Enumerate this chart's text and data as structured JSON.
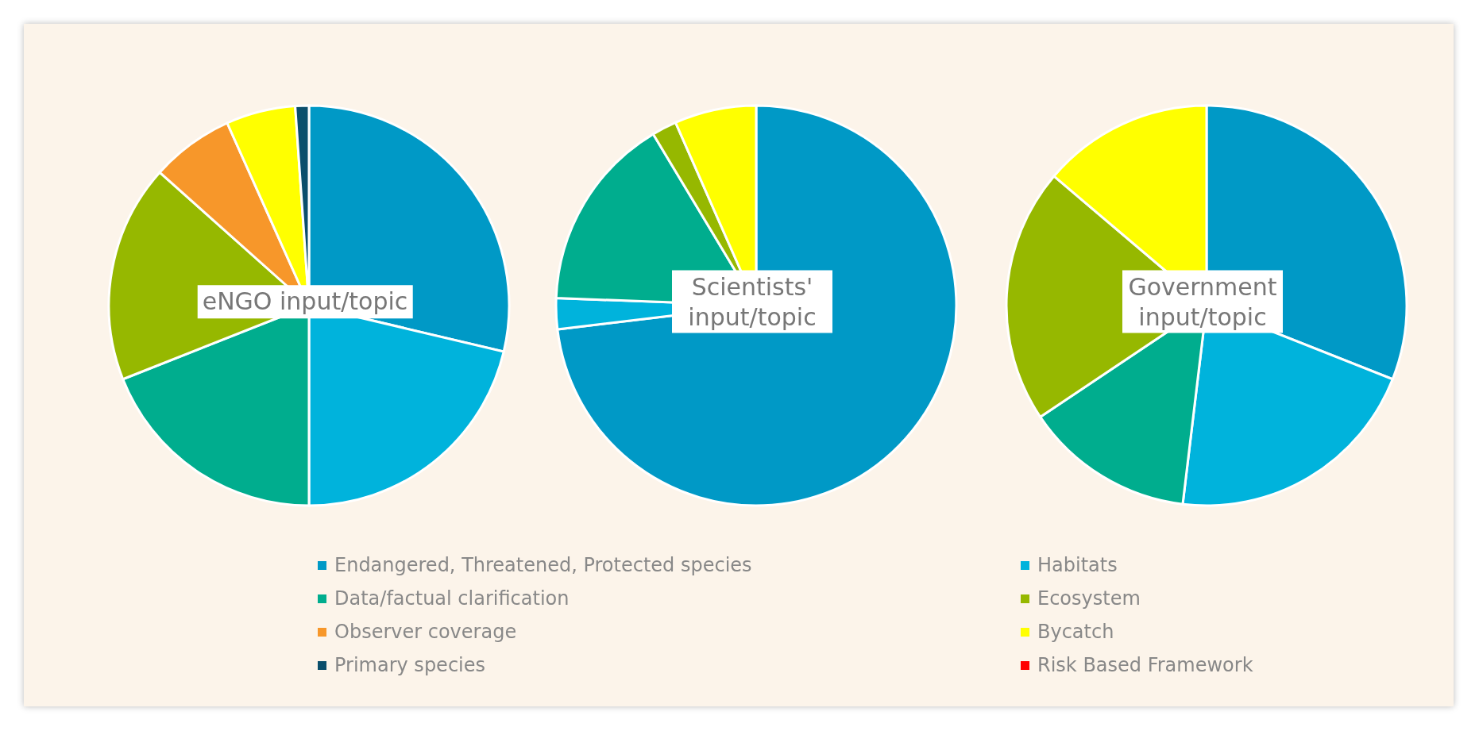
{
  "chart_data": [
    {
      "type": "pie",
      "title": "eNGO input/topic",
      "categories": [
        "Endangered, Threatened, Protected species",
        "Habitats",
        "Data/factual clarification",
        "Ecosystem",
        "Observer coverage",
        "Bycatch",
        "Primary species",
        "Risk Based Framework"
      ],
      "values": [
        28.7,
        21.3,
        19,
        17.6,
        6.7,
        5.6,
        1.1,
        0
      ],
      "colors": [
        "#0099c6",
        "#00b3dc",
        "#00ad8e",
        "#96b800",
        "#f7972a",
        "#ffff00",
        "#0b4f6c",
        "#ff0000"
      ],
      "legend": "bottom"
    },
    {
      "type": "pie",
      "title": "Scientists' input/topic",
      "categories": [
        null,
        null,
        null,
        null,
        null,
        null,
        null,
        null
      ],
      "values": [
        73.1,
        2.5,
        15.8,
        2,
        0,
        6.6,
        0,
        0
      ],
      "colors": [
        "#0099c6",
        "#00b3dc",
        "#00ad8e",
        "#96b800",
        "#f7972a",
        "#ffff00",
        "#0b4f6c",
        "#ff0000"
      ]
    },
    {
      "type": "pie",
      "title": "Government input/topic",
      "categories": [
        null,
        null,
        null,
        null,
        null,
        null,
        null,
        null
      ],
      "values": [
        31,
        20.9,
        13.7,
        20.6,
        0,
        13.8,
        0,
        0
      ],
      "colors": [
        "#0099c6",
        "#00b3dc",
        "#00ad8e",
        "#96b800",
        "#f7972a",
        "#ffff00",
        "#0b4f6c",
        "#ff0000"
      ]
    }
  ]
}
